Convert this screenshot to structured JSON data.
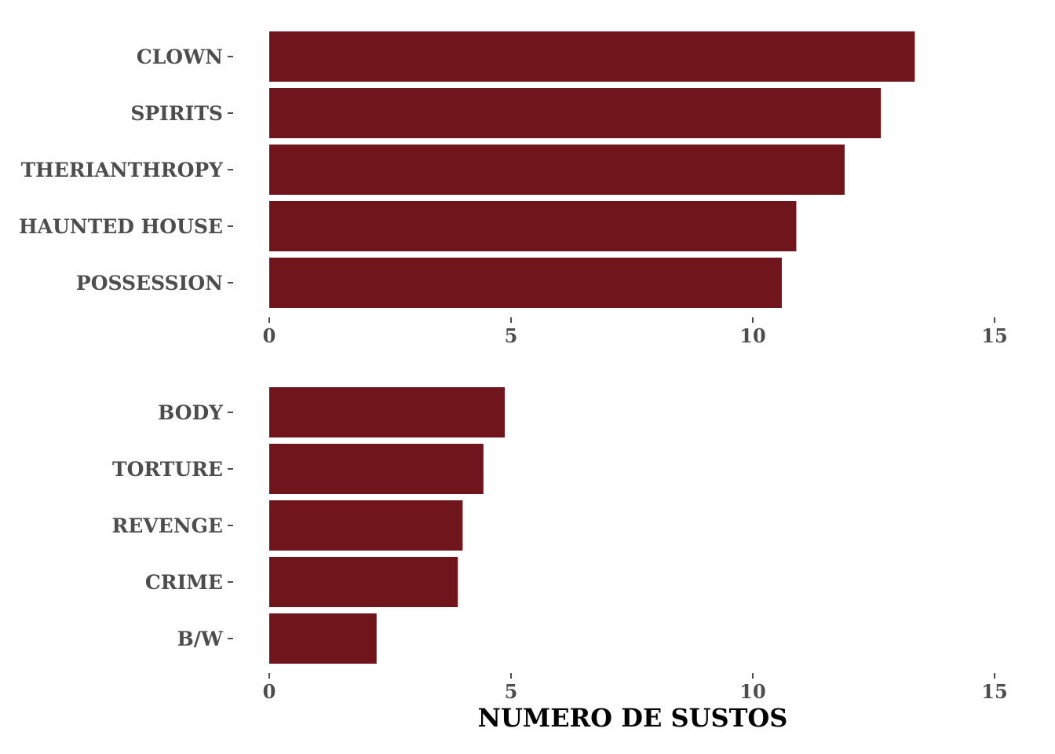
{
  "chart_data": [
    {
      "type": "bar",
      "orientation": "horizontal",
      "categories": [
        "CLOWN",
        "SPIRITS",
        "THERIANTHROPY",
        "HAUNTED HOUSE",
        "POSSESSION"
      ],
      "values": [
        13.35,
        12.65,
        11.9,
        10.9,
        10.6
      ],
      "xlim": [
        0,
        15
      ],
      "xticks": [
        "0",
        "5",
        "10",
        "15"
      ],
      "grid": false,
      "color": "#70151c"
    },
    {
      "type": "bar",
      "orientation": "horizontal",
      "categories": [
        "BODY",
        "TORTURE",
        "REVENGE",
        "CRIME",
        "B/W"
      ],
      "values": [
        4.87,
        4.43,
        4.0,
        3.9,
        2.22
      ],
      "xlim": [
        0,
        15
      ],
      "xticks": [
        "0",
        "5",
        "10",
        "15"
      ],
      "grid": false,
      "color": "#70151c"
    }
  ],
  "xlabel": "NUMERO DE SUSTOS"
}
